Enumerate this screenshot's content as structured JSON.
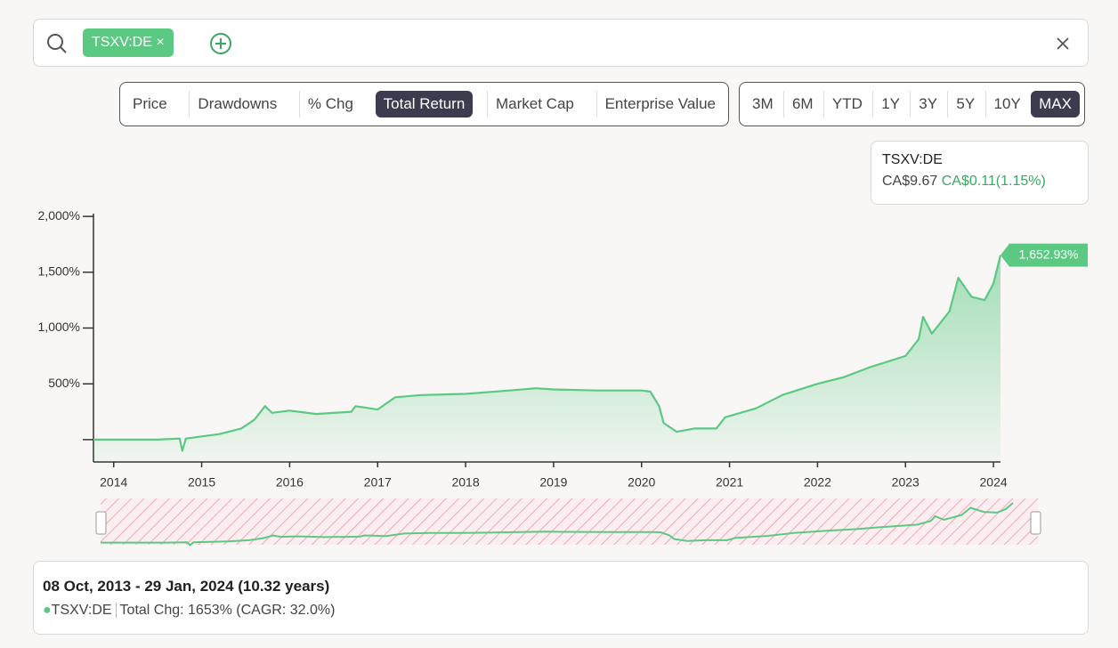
{
  "search": {
    "tag": "TSXV:DE"
  },
  "metric_tabs": [
    "Price",
    "Drawdowns",
    "% Chg",
    "Total Return",
    "Market Cap",
    "Enterprise Value"
  ],
  "active_metric": "Total Return",
  "range_tabs": [
    "3M",
    "6M",
    "YTD",
    "1Y",
    "3Y",
    "5Y",
    "10Y",
    "MAX"
  ],
  "active_range": "MAX",
  "tooltip": {
    "ticker": "TSXV:DE",
    "price": "CA$9.67",
    "change": "CA$0.11(1.15%)"
  },
  "chart_data": {
    "type": "line",
    "x": [
      2013.77,
      2014.5,
      2014.75,
      2014.78,
      2014.82,
      2015.2,
      2015.45,
      2015.6,
      2015.72,
      2015.8,
      2016.0,
      2016.3,
      2016.7,
      2016.75,
      2017.0,
      2017.2,
      2017.5,
      2018.0,
      2018.5,
      2018.8,
      2019.0,
      2019.5,
      2020.0,
      2020.1,
      2020.2,
      2020.25,
      2020.4,
      2020.6,
      2020.85,
      2020.95,
      2021.3,
      2021.6,
      2022.0,
      2022.3,
      2022.6,
      2023.0,
      2023.15,
      2023.2,
      2023.3,
      2023.5,
      2023.6,
      2023.75,
      2023.9,
      2024.0,
      2024.08
    ],
    "series": [
      {
        "name": "TSXV:DE",
        "color": "#5cc983",
        "values": [
          0,
          0,
          10,
          -100,
          10,
          50,
          100,
          180,
          300,
          240,
          260,
          230,
          250,
          300,
          270,
          380,
          400,
          410,
          440,
          460,
          450,
          440,
          440,
          430,
          300,
          150,
          70,
          100,
          100,
          200,
          280,
          400,
          500,
          560,
          650,
          750,
          900,
          1100,
          950,
          1150,
          1450,
          1280,
          1250,
          1400,
          1652.93
        ]
      }
    ],
    "end_label": "1,652.93%",
    "xlim": [
      2013.77,
      2024.08
    ],
    "xticks": [
      2014,
      2015,
      2016,
      2017,
      2018,
      2019,
      2020,
      2021,
      2022,
      2023,
      2024
    ],
    "ylim": [
      -200,
      2025
    ],
    "yticks": [
      {
        "value": 0
      },
      {
        "value": 500,
        "label": "500%"
      },
      {
        "value": 1000,
        "label": "1,000%"
      },
      {
        "value": 1500,
        "label": "1,500%"
      },
      {
        "value": 2000,
        "label": "2,000%"
      }
    ]
  },
  "summary": {
    "period": "08 Oct, 2013 - 29 Jan, 2024 (10.32 years)",
    "total_chg": "Total Chg: 1653% (CAGR: 32.0%)"
  }
}
